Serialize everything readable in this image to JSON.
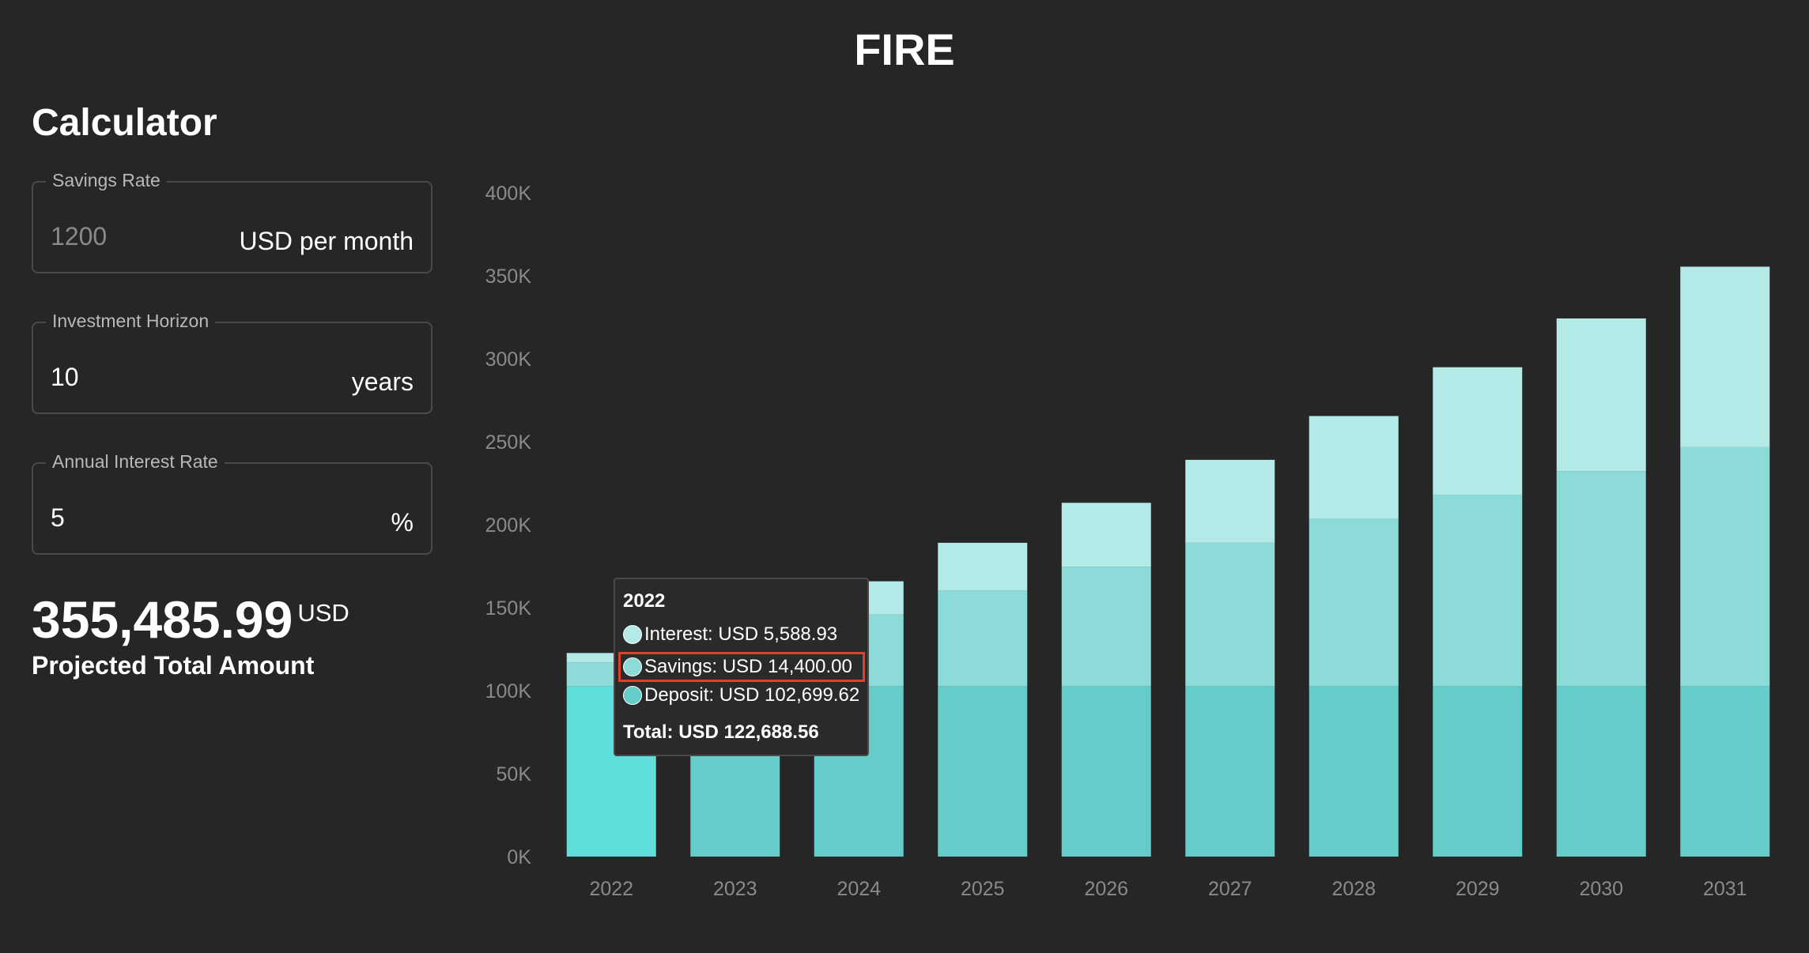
{
  "app_title": "FIRE",
  "calculator": {
    "heading": "Calculator",
    "savings_rate": {
      "label": "Savings Rate",
      "placeholder": "1200",
      "unit": "USD per month"
    },
    "investment_horizon": {
      "label": "Investment Horizon",
      "value": "10",
      "unit": "years"
    },
    "annual_interest_rate": {
      "label": "Annual Interest Rate",
      "value": "5",
      "unit": "%"
    }
  },
  "projection": {
    "value": "355,485.99",
    "currency": "USD",
    "caption": "Projected Total Amount"
  },
  "tooltip": {
    "title": "2022",
    "rows": [
      {
        "text": "Interest: USD 5,588.93",
        "color": "#b3e9e7"
      },
      {
        "text": "Savings: USD 14,400.00",
        "color": "#8cdbd9",
        "highlighted": true
      },
      {
        "text": "Deposit: USD 102,699.62",
        "color": "#66ccc9"
      }
    ],
    "total": "Total: USD 122,688.56",
    "highlight_color": "#e0402a"
  },
  "colors": {
    "deposit": "#66ccc9",
    "deposit_active": "#5fdfdc",
    "savings": "#8cdbd9",
    "interest": "#b3e9e7",
    "grid": "#333333",
    "axis_text": "#8a8a8a"
  },
  "chart_data": {
    "type": "bar",
    "stacked": true,
    "categories": [
      "2022",
      "2023",
      "2024",
      "2025",
      "2026",
      "2027",
      "2028",
      "2029",
      "2030",
      "2031"
    ],
    "series": [
      {
        "name": "Deposit",
        "values": [
          102699.62,
          102699.62,
          102699.62,
          102699.62,
          102699.62,
          102699.62,
          102699.62,
          102699.62,
          102699.62,
          102699.62
        ]
      },
      {
        "name": "Savings",
        "values": [
          14400,
          28800,
          43200,
          57600,
          72000,
          86400,
          100800,
          115200,
          129600,
          144000
        ]
      },
      {
        "name": "Interest",
        "values": [
          5588.93,
          12000,
          20000,
          28800,
          38500,
          50000,
          62000,
          77000,
          92000,
          108786.37
        ]
      }
    ],
    "y_ticks": [
      "0K",
      "50K",
      "100K",
      "150K",
      "200K",
      "250K",
      "300K",
      "350K",
      "400K"
    ],
    "ylim": [
      0,
      400000
    ],
    "grid": false
  }
}
